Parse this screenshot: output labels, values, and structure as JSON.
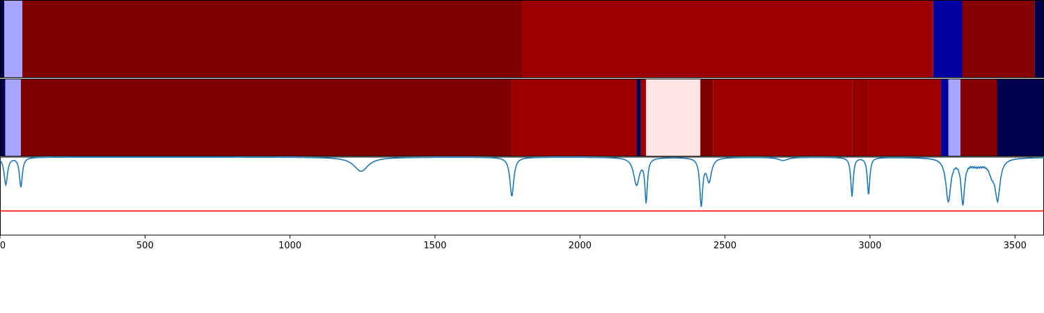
{
  "chart_data": [
    {
      "type": "heatmap",
      "colors": {
        "dark_navy": "#000050",
        "light_blue": "#a6a6ff",
        "maroon": "#800000",
        "red": "#9c0000",
        "blue": "#0000a0"
      },
      "segments": [
        {
          "start": 0,
          "end": 15,
          "color": "#000050"
        },
        {
          "start": 15,
          "end": 77,
          "color": "#a6a6ff"
        },
        {
          "start": 77,
          "end": 1800,
          "color": "#800000"
        },
        {
          "start": 1800,
          "end": 3218,
          "color": "#9c0000"
        },
        {
          "start": 3218,
          "end": 3318,
          "color": "#0000a0"
        },
        {
          "start": 3318,
          "end": 3568,
          "color": "#850000"
        },
        {
          "start": 3568,
          "end": 3600,
          "color": "#000050"
        }
      ]
    },
    {
      "type": "heatmap",
      "colors": {
        "dark_navy": "#000050",
        "light_blue": "#a6a6ff",
        "maroon": "#800000",
        "red": "#9c0000",
        "pink": "#ffe4e4"
      },
      "segments": [
        {
          "start": 0,
          "end": 18,
          "color": "#000050"
        },
        {
          "start": 18,
          "end": 72,
          "color": "#a6a6ff"
        },
        {
          "start": 72,
          "end": 1765,
          "color": "#800000"
        },
        {
          "start": 1765,
          "end": 2195,
          "color": "#9c0000"
        },
        {
          "start": 2195,
          "end": 2210,
          "color": "#000050"
        },
        {
          "start": 2210,
          "end": 2228,
          "color": "#9c0000"
        },
        {
          "start": 2228,
          "end": 2415,
          "color": "#ffe4e4"
        },
        {
          "start": 2415,
          "end": 2458,
          "color": "#800000"
        },
        {
          "start": 2458,
          "end": 2938,
          "color": "#9c0000"
        },
        {
          "start": 2938,
          "end": 2995,
          "color": "#920000"
        },
        {
          "start": 2995,
          "end": 3245,
          "color": "#9c0000"
        },
        {
          "start": 3245,
          "end": 3270,
          "color": "#0000a0"
        },
        {
          "start": 3270,
          "end": 3312,
          "color": "#a6a6ff"
        },
        {
          "start": 3312,
          "end": 3438,
          "color": "#850000"
        },
        {
          "start": 3438,
          "end": 3600,
          "color": "#000050"
        }
      ]
    },
    {
      "type": "line",
      "xlim": [
        0,
        3600
      ],
      "ylim": [
        0,
        1
      ],
      "threshold": 0.31,
      "series": [
        {
          "color": "#1f77b4",
          "baseline": 1.0,
          "dips": [
            {
              "center": 20,
              "depth": 0.35,
              "width": 7
            },
            {
              "center": 72,
              "depth": 0.38,
              "width": 6
            },
            {
              "center": 1245,
              "depth": 0.18,
              "width": 30
            },
            {
              "center": 1765,
              "depth": 0.5,
              "width": 8
            },
            {
              "center": 2195,
              "depth": 0.35,
              "width": 12
            },
            {
              "center": 2228,
              "depth": 0.55,
              "width": 5
            },
            {
              "center": 2418,
              "depth": 0.6,
              "width": 6
            },
            {
              "center": 2445,
              "depth": 0.3,
              "width": 10
            },
            {
              "center": 2700,
              "depth": 0.04,
              "width": 20
            },
            {
              "center": 2938,
              "depth": 0.5,
              "width": 5
            },
            {
              "center": 2995,
              "depth": 0.48,
              "width": 5
            },
            {
              "center": 3270,
              "depth": 0.55,
              "width": 10
            },
            {
              "center": 3320,
              "depth": 0.55,
              "width": 7
            },
            {
              "center": 3420,
              "depth": 0.15,
              "width": 12
            },
            {
              "center": 3440,
              "depth": 0.5,
              "width": 10
            },
            {
              "center": 3370,
              "depth": 0.1,
              "width": 40
            }
          ]
        }
      ],
      "x_ticks": [
        {
          "value": 0,
          "label": "0"
        },
        {
          "value": 500,
          "label": "500"
        },
        {
          "value": 1000,
          "label": "1000"
        },
        {
          "value": 1500,
          "label": "1500"
        },
        {
          "value": 2000,
          "label": "2000"
        },
        {
          "value": 2500,
          "label": "2500"
        },
        {
          "value": 3000,
          "label": "3000"
        },
        {
          "value": 3500,
          "label": "3500"
        }
      ]
    }
  ]
}
